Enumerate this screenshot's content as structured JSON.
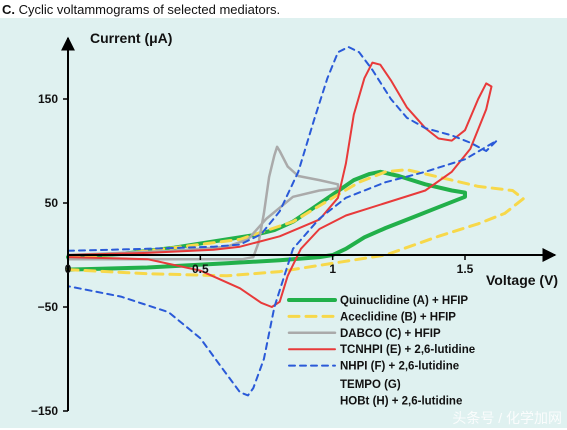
{
  "caption": {
    "label": "C.",
    "text": " Cyclic voltammograms of selected mediators."
  },
  "watermark": "头条号 / 化学加网",
  "chart_data": {
    "type": "line",
    "title": "Cyclic voltammograms of selected mediators.",
    "xlabel": "Voltage (V)",
    "ylabel": "Current (μA)",
    "xlim": [
      0,
      1.8
    ],
    "ylim": [
      -150,
      205
    ],
    "x_ticks": [
      0,
      0.5,
      1,
      1.5
    ],
    "x_tick_labels": [
      "0",
      "0.5",
      "1",
      "1.5"
    ],
    "y_ticks": [
      -150,
      -50,
      50,
      150
    ],
    "y_tick_labels": [
      "−150",
      "−50",
      "50",
      "150"
    ],
    "grid": false,
    "legend_position": "bottom-right",
    "series": [
      {
        "name": "Quinuclidine (A) + HFIP",
        "color": "#22b04a",
        "dash": "solid",
        "width": 4,
        "points": [
          [
            0,
            -14
          ],
          [
            0.3,
            -12
          ],
          [
            0.6,
            -8
          ],
          [
            0.8,
            -5
          ],
          [
            0.95,
            -2
          ],
          [
            1.0,
            0
          ],
          [
            1.05,
            6
          ],
          [
            1.12,
            17
          ],
          [
            1.2,
            26
          ],
          [
            1.3,
            36
          ],
          [
            1.4,
            46
          ],
          [
            1.5,
            56
          ],
          [
            1.5,
            60
          ],
          [
            1.45,
            62
          ],
          [
            1.35,
            68
          ],
          [
            1.25,
            76
          ],
          [
            1.18,
            80
          ],
          [
            1.14,
            78
          ],
          [
            1.08,
            72
          ],
          [
            1.0,
            58
          ],
          [
            0.92,
            44
          ],
          [
            0.85,
            32
          ],
          [
            0.78,
            24
          ],
          [
            0.7,
            19
          ],
          [
            0.6,
            15
          ],
          [
            0.4,
            7
          ],
          [
            0.2,
            1
          ],
          [
            0,
            -2
          ]
        ]
      },
      {
        "name": "Aceclidine (B) + HFIP",
        "color": "#f7d84a",
        "dash": "10,7",
        "width": 3,
        "points": [
          [
            0,
            -14
          ],
          [
            0.3,
            -18
          ],
          [
            0.6,
            -20
          ],
          [
            0.8,
            -16
          ],
          [
            1.0,
            -8
          ],
          [
            1.2,
            0
          ],
          [
            1.4,
            18
          ],
          [
            1.55,
            30
          ],
          [
            1.65,
            40
          ],
          [
            1.72,
            54
          ],
          [
            1.68,
            62
          ],
          [
            1.55,
            66
          ],
          [
            1.45,
            72
          ],
          [
            1.35,
            78
          ],
          [
            1.28,
            82
          ],
          [
            1.2,
            80
          ],
          [
            1.1,
            70
          ],
          [
            1.0,
            55
          ],
          [
            0.85,
            32
          ],
          [
            0.65,
            15
          ],
          [
            0.4,
            7
          ],
          [
            0.2,
            1
          ],
          [
            0,
            -2
          ]
        ]
      },
      {
        "name": "DABCO (C) + HFIP",
        "color": "#aaaaaa",
        "dash": "solid",
        "width": 2.5,
        "points": [
          [
            0,
            -4
          ],
          [
            0.3,
            -4
          ],
          [
            0.6,
            -4
          ],
          [
            0.66,
            -4
          ],
          [
            0.7,
            -2
          ],
          [
            0.72,
            12
          ],
          [
            0.74,
            40
          ],
          [
            0.76,
            75
          ],
          [
            0.78,
            96
          ],
          [
            0.79,
            104
          ],
          [
            0.8,
            100
          ],
          [
            0.83,
            85
          ],
          [
            0.87,
            76
          ],
          [
            0.95,
            72
          ],
          [
            1.02,
            68
          ],
          [
            1.02,
            64
          ],
          [
            0.95,
            62
          ],
          [
            0.85,
            56
          ],
          [
            0.75,
            35
          ],
          [
            0.68,
            15
          ],
          [
            0.6,
            8
          ],
          [
            0.4,
            4
          ],
          [
            0.2,
            2
          ],
          [
            0,
            0
          ]
        ]
      },
      {
        "name": "TCNHPI (E) + 2,6-lutidine",
        "color": "#e83a3a",
        "dash": "solid",
        "width": 2,
        "points": [
          [
            0,
            0
          ],
          [
            0.3,
            2
          ],
          [
            0.55,
            5
          ],
          [
            0.65,
            8
          ],
          [
            0.8,
            18
          ],
          [
            0.95,
            34
          ],
          [
            1.02,
            55
          ],
          [
            1.05,
            88
          ],
          [
            1.08,
            135
          ],
          [
            1.12,
            170
          ],
          [
            1.15,
            185
          ],
          [
            1.18,
            183
          ],
          [
            1.22,
            168
          ],
          [
            1.28,
            142
          ],
          [
            1.35,
            122
          ],
          [
            1.4,
            112
          ],
          [
            1.45,
            110
          ],
          [
            1.5,
            120
          ],
          [
            1.55,
            150
          ],
          [
            1.58,
            165
          ],
          [
            1.6,
            162
          ],
          [
            1.58,
            140
          ],
          [
            1.52,
            102
          ],
          [
            1.45,
            80
          ],
          [
            1.35,
            62
          ],
          [
            1.2,
            50
          ],
          [
            1.05,
            38
          ],
          [
            0.95,
            25
          ],
          [
            0.88,
            6
          ],
          [
            0.83,
            -20
          ],
          [
            0.8,
            -45
          ],
          [
            0.77,
            -50
          ],
          [
            0.73,
            -46
          ],
          [
            0.65,
            -32
          ],
          [
            0.5,
            -15
          ],
          [
            0.3,
            -4
          ],
          [
            0,
            -2
          ]
        ]
      },
      {
        "name": "NHPI (F) + 2,6-lutidine",
        "color": "#2a5ad8",
        "dash": "6,5",
        "width": 2,
        "points": [
          [
            0,
            4
          ],
          [
            0.3,
            6
          ],
          [
            0.55,
            8
          ],
          [
            0.65,
            10
          ],
          [
            0.73,
            20
          ],
          [
            0.8,
            42
          ],
          [
            0.87,
            80
          ],
          [
            0.93,
            130
          ],
          [
            0.98,
            170
          ],
          [
            1.02,
            195
          ],
          [
            1.06,
            200
          ],
          [
            1.1,
            195
          ],
          [
            1.15,
            178
          ],
          [
            1.22,
            150
          ],
          [
            1.28,
            132
          ],
          [
            1.35,
            122
          ],
          [
            1.45,
            115
          ],
          [
            1.52,
            108
          ],
          [
            1.58,
            100
          ],
          [
            1.62,
            110
          ],
          [
            1.5,
            92
          ],
          [
            1.35,
            80
          ],
          [
            1.2,
            70
          ],
          [
            1.05,
            55
          ],
          [
            0.95,
            35
          ],
          [
            0.85,
            6
          ],
          [
            0.78,
            -50
          ],
          [
            0.74,
            -100
          ],
          [
            0.7,
            -128
          ],
          [
            0.68,
            -135
          ],
          [
            0.65,
            -132
          ],
          [
            0.58,
            -108
          ],
          [
            0.5,
            -80
          ],
          [
            0.38,
            -55
          ],
          [
            0.2,
            -40
          ],
          [
            0,
            -30
          ]
        ]
      }
    ],
    "legend_extra": [
      "TEMPO (G)",
      "HOBt (H) + 2,6-lutidine"
    ]
  }
}
